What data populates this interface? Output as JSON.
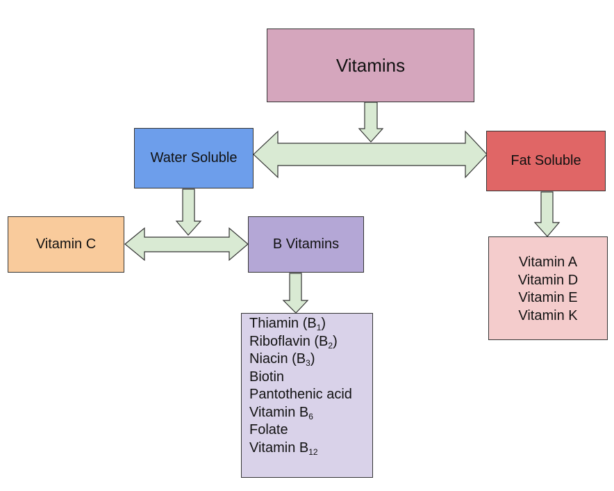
{
  "root": {
    "label": "Vitamins"
  },
  "water_soluble": {
    "label": "Water Soluble"
  },
  "fat_soluble": {
    "label": "Fat Soluble"
  },
  "vitamin_c": {
    "label": "Vitamin C"
  },
  "b_vitamins": {
    "label": "B Vitamins",
    "items": [
      {
        "text": "Thiamin (B",
        "sub": "1",
        "suffix": ")"
      },
      {
        "text": "Riboflavin (B",
        "sub": "2",
        "suffix": ")"
      },
      {
        "text": "Niacin (B",
        "sub": "3",
        "suffix": ")"
      },
      {
        "text": "Biotin",
        "sub": "",
        "suffix": ""
      },
      {
        "text": "Pantothenic acid",
        "sub": "",
        "suffix": ""
      },
      {
        "text": "Vitamin B",
        "sub": "6",
        "suffix": ""
      },
      {
        "text": "Folate",
        "sub": "",
        "suffix": ""
      },
      {
        "text": "Vitamin B",
        "sub": "12",
        "suffix": ""
      }
    ]
  },
  "fat_soluble_list": {
    "items": [
      "Vitamin A",
      "Vitamin D",
      "Vitamin E",
      "Vitamin K"
    ]
  },
  "colors": {
    "vitamins": "#d5a6bd",
    "water_soluble": "#6d9eeb",
    "fat_soluble": "#e06666",
    "vitamin_c": "#f9cb9c",
    "b_vitamins": "#b4a7d6",
    "b_list": "#d9d2e9",
    "fat_list": "#f4cccc",
    "arrow_fill": "#d9ead3"
  }
}
